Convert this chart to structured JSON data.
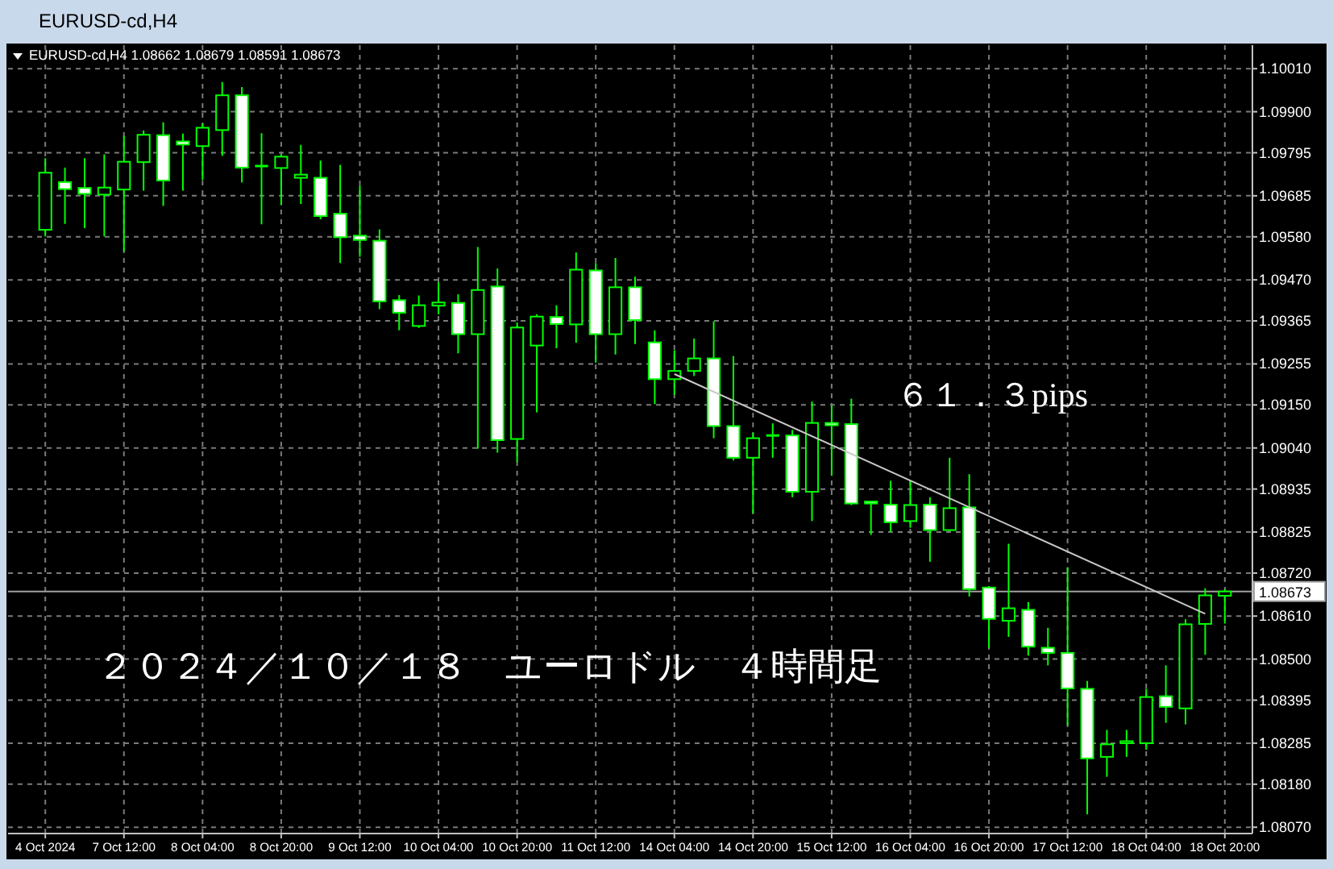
{
  "chart_data": {
    "type": "candlestick",
    "title": "EURUSD-cd,H4",
    "subtitle": "EURUSD-cd,H4  1.08662 1.08679 1.08591 1.08673",
    "categories": [
      "4 Oct 2024",
      null,
      null,
      null,
      "7 Oct 12:00",
      null,
      null,
      null,
      "8 Oct 04:00",
      null,
      null,
      null,
      "8 Oct 20:00",
      null,
      null,
      null,
      "9 Oct 12:00",
      null,
      null,
      null,
      "10 Oct 04:00",
      null,
      null,
      null,
      "10 Oct 20:00",
      null,
      null,
      null,
      "11 Oct 12:00",
      null,
      null,
      null,
      "14 Oct 04:00",
      null,
      null,
      null,
      "14 Oct 20:00",
      null,
      null,
      null,
      "15 Oct 12:00",
      null,
      null,
      null,
      "16 Oct 04:00",
      null,
      null,
      null,
      "16 Oct 20:00",
      null,
      null,
      null,
      "17 Oct 12:00",
      null,
      null,
      null,
      "18 Oct 04:00",
      null,
      null,
      null,
      "18 Oct 20:00"
    ],
    "ohlc": [
      [
        1.09598,
        1.09781,
        1.09581,
        1.09744
      ],
      [
        1.0972,
        1.09757,
        1.09613,
        1.09702
      ],
      [
        1.09705,
        1.09781,
        1.09602,
        1.0969
      ],
      [
        1.09688,
        1.09791,
        1.09581,
        1.09706
      ],
      [
        1.09701,
        1.09838,
        1.09543,
        1.09772
      ],
      [
        1.09771,
        1.09852,
        1.09698,
        1.09841
      ],
      [
        1.0984,
        1.09873,
        1.09659,
        1.09724
      ],
      [
        1.09824,
        1.09844,
        1.09698,
        1.09816
      ],
      [
        1.09812,
        1.0987,
        1.09725,
        1.09859
      ],
      [
        1.09853,
        1.09976,
        1.09787,
        1.09942
      ],
      [
        1.09942,
        1.09963,
        1.09719,
        1.09757
      ],
      [
        1.09761,
        1.09845,
        1.09612,
        1.09761
      ],
      [
        1.09756,
        1.09791,
        1.09661,
        1.09785
      ],
      [
        1.09731,
        1.09815,
        1.09664,
        1.09739
      ],
      [
        1.09731,
        1.09775,
        1.09625,
        1.09633
      ],
      [
        1.09639,
        1.09764,
        1.09513,
        1.09579
      ],
      [
        1.09583,
        1.09711,
        1.09529,
        1.09572
      ],
      [
        1.0957,
        1.09599,
        1.09395,
        1.09415
      ],
      [
        1.09418,
        1.09431,
        1.09341,
        1.09386
      ],
      [
        1.09352,
        1.0943,
        1.09347,
        1.09405
      ],
      [
        1.09404,
        1.09464,
        1.09382,
        1.09412
      ],
      [
        1.09411,
        1.09433,
        1.09282,
        1.09331
      ],
      [
        1.09331,
        1.09554,
        1.09038,
        1.09444
      ],
      [
        1.09453,
        1.09499,
        1.09028,
        1.0906
      ],
      [
        1.09063,
        1.09361,
        1.09004,
        1.09348
      ],
      [
        1.09302,
        1.09382,
        1.09131,
        1.09376
      ],
      [
        1.09375,
        1.09405,
        1.09295,
        1.09357
      ],
      [
        1.09356,
        1.0954,
        1.09309,
        1.09496
      ],
      [
        1.09494,
        1.09513,
        1.09258,
        1.09331
      ],
      [
        1.09331,
        1.09526,
        1.09279,
        1.09451
      ],
      [
        1.09451,
        1.09478,
        1.09306,
        1.09367
      ],
      [
        1.0931,
        1.09341,
        1.09152,
        1.09216
      ],
      [
        1.09216,
        1.0929,
        1.09176,
        1.09237
      ],
      [
        1.09237,
        1.0932,
        1.09224,
        1.09269
      ],
      [
        1.09269,
        1.09364,
        1.09065,
        1.09096
      ],
      [
        1.09096,
        1.09275,
        1.09008,
        1.09015
      ],
      [
        1.09015,
        1.09079,
        1.08873,
        1.09065
      ],
      [
        1.09072,
        1.09103,
        1.09015,
        1.09072
      ],
      [
        1.09072,
        1.09086,
        1.08914,
        1.08928
      ],
      [
        1.08928,
        1.09159,
        1.08853,
        1.09104
      ],
      [
        1.09104,
        1.09148,
        1.08969,
        1.09098
      ],
      [
        1.09101,
        1.09166,
        1.08894,
        1.08898
      ],
      [
        1.08903,
        1.08903,
        1.08818,
        1.08898
      ],
      [
        1.08895,
        1.08956,
        1.08825,
        1.0885
      ],
      [
        1.08853,
        1.08956,
        1.08836,
        1.08894
      ],
      [
        1.08895,
        1.08914,
        1.08749,
        1.0883
      ],
      [
        1.0883,
        1.09015,
        1.08828,
        1.08886
      ],
      [
        1.08888,
        1.08973,
        1.0866,
        1.08679
      ],
      [
        1.08683,
        1.08687,
        1.08529,
        1.08603
      ],
      [
        1.08598,
        1.08795,
        1.08557,
        1.0863
      ],
      [
        1.08626,
        1.08646,
        1.08509,
        1.08532
      ],
      [
        1.08529,
        1.0858,
        1.08484,
        1.08516
      ],
      [
        1.08516,
        1.08735,
        1.0833,
        1.08425
      ],
      [
        1.08424,
        1.08444,
        1.08103,
        1.08246
      ],
      [
        1.0825,
        1.08319,
        1.08199,
        1.08282
      ],
      [
        1.08285,
        1.08319,
        1.0825,
        1.0829
      ],
      [
        1.08285,
        1.08424,
        1.08268,
        1.08403
      ],
      [
        1.08405,
        1.08484,
        1.08337,
        1.08378
      ],
      [
        1.08374,
        1.08602,
        1.08333,
        1.08589
      ],
      [
        1.0859,
        1.08681,
        1.08511,
        1.08663
      ],
      [
        1.08662,
        1.08679,
        1.08591,
        1.08673
      ]
    ],
    "series": [
      {
        "type": "line",
        "color": "#c8c8c8",
        "values": [
          null,
          null,
          null,
          null,
          null,
          null,
          null,
          null,
          null,
          null,
          null,
          null,
          null,
          null,
          null,
          null,
          null,
          null,
          null,
          null,
          null,
          null,
          null,
          null,
          null,
          null,
          null,
          null,
          null,
          null,
          null,
          null,
          1.09229,
          null,
          null,
          null,
          null,
          null,
          null,
          null,
          null,
          null,
          null,
          null,
          null,
          null,
          null,
          null,
          null,
          null,
          null,
          null,
          null,
          null,
          null,
          null,
          null,
          null,
          null,
          1.08616,
          null
        ]
      }
    ],
    "ylim": [
      1.08058,
      1.10062
    ],
    "yticks": [
      {
        "value": 1.1001,
        "label": "1.10010"
      },
      {
        "value": 1.099,
        "label": "1.09900"
      },
      1.09795,
      1.09685,
      {
        "value": 1.0958,
        "label": "1.09580"
      },
      {
        "value": 1.0947,
        "label": "1.09470"
      },
      1.09365,
      1.09255,
      {
        "value": 1.0915,
        "label": "1.09150"
      },
      {
        "value": 1.0904,
        "label": "1.09040"
      },
      1.08935,
      1.08825,
      {
        "value": 1.0872,
        "label": "1.08720"
      },
      {
        "value": 1.0861,
        "label": "1.08610"
      },
      {
        "value": 1.085,
        "label": "1.08500"
      },
      1.08395,
      1.08285,
      {
        "value": 1.0818,
        "label": "1.08180"
      },
      {
        "value": 1.0807,
        "label": "1.08070"
      }
    ],
    "ref_lines": [
      {
        "axis": "y",
        "value": 1.08673,
        "label": "1.08673",
        "color": "#a0a0a0"
      }
    ],
    "annotations": [
      "６１．３pips",
      "２０２４／１０／１８　ユーロドル　４時間足"
    ],
    "grid": true
  }
}
